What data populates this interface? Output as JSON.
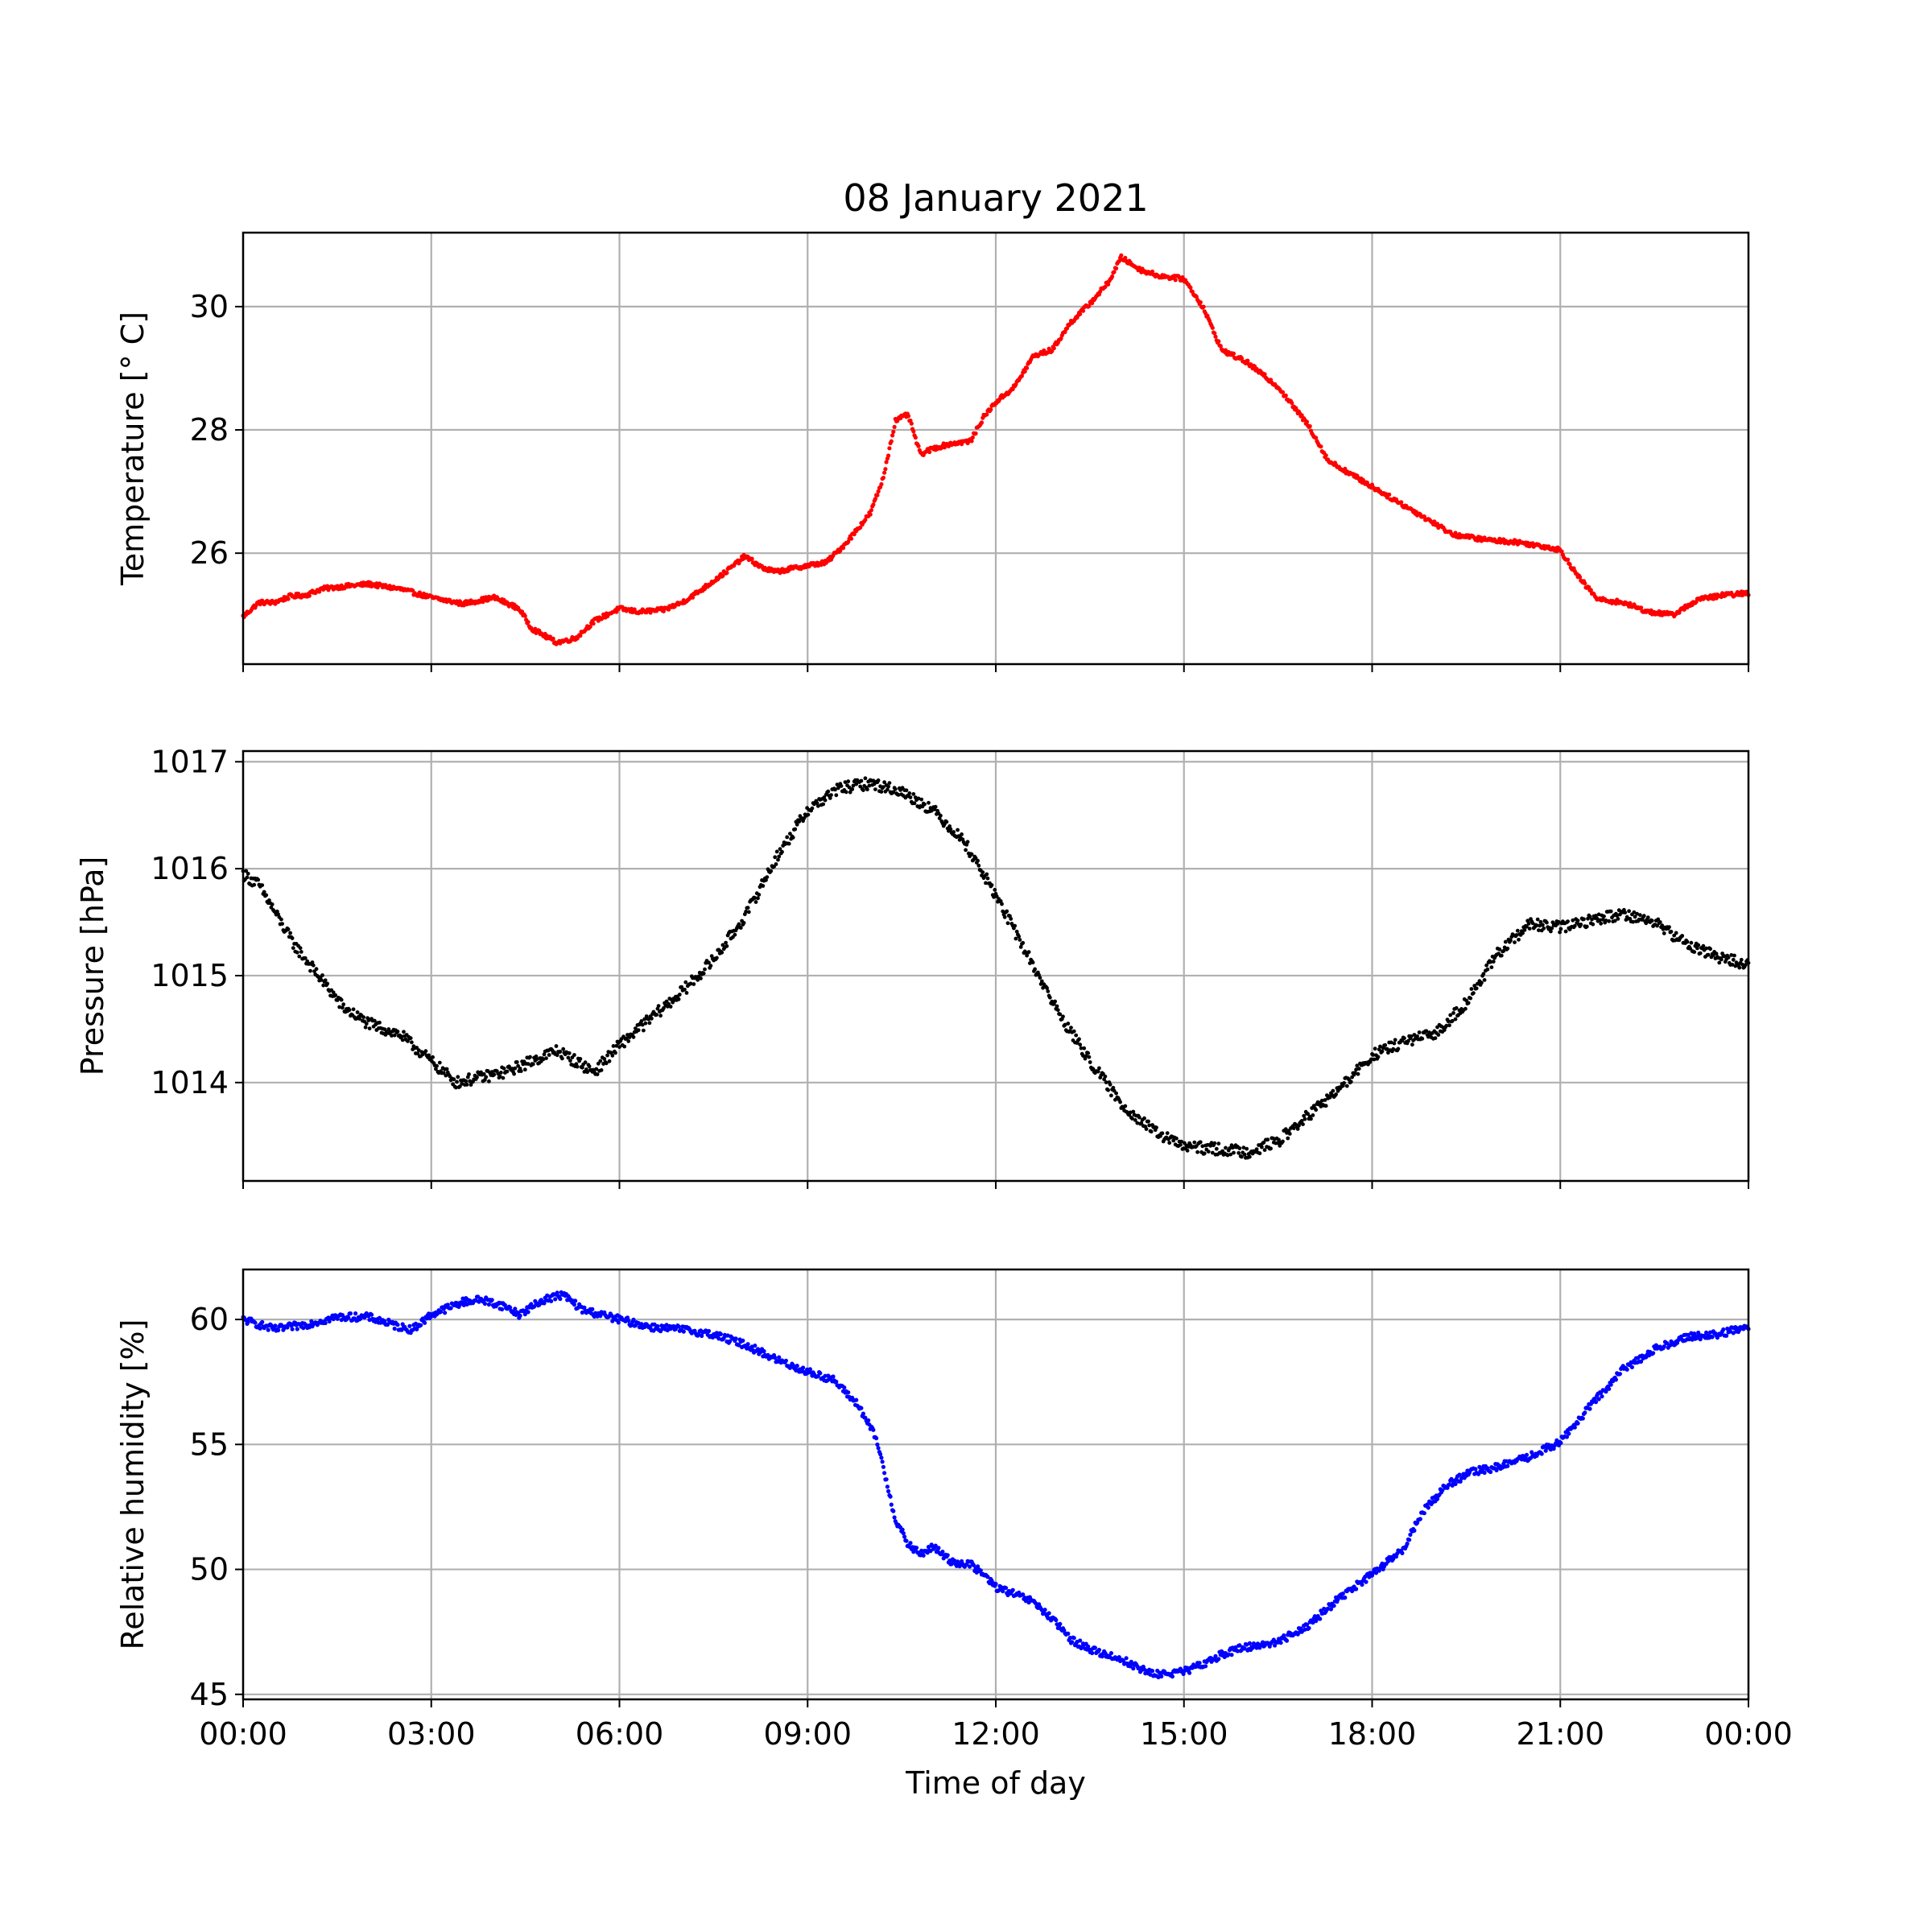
{
  "chart_data": [
    {
      "type": "scatter",
      "title": "08 January 2021",
      "ylabel": "Temperature [° C]",
      "xlabel": "",
      "xlim": [
        0,
        24
      ],
      "ylim": [
        24.2,
        31.2
      ],
      "grid": true,
      "color": "#ff0000",
      "x_ticks": [
        0,
        3,
        6,
        9,
        12,
        15,
        18,
        21,
        24
      ],
      "y_ticks": [
        {
          "value": 26,
          "label": "26"
        },
        {
          "value": 28,
          "label": "28"
        },
        {
          "value": 30,
          "label": "30"
        }
      ],
      "series": [
        {
          "x": [
            0,
            0.25,
            0.5,
            0.75,
            1.0,
            1.25,
            1.5,
            2.0,
            2.5,
            3.0,
            3.5,
            4.0,
            4.4,
            4.6,
            5.0,
            5.3,
            5.6,
            6.0,
            6.3,
            6.7,
            7.0,
            7.3,
            7.7,
            8.0,
            8.3,
            8.5,
            9.0,
            9.3,
            9.6,
            10.0,
            10.2,
            10.4,
            10.6,
            10.8,
            11.0,
            11.3,
            11.6,
            11.8,
            12.0,
            12.3,
            12.6,
            12.9,
            13.2,
            13.5,
            13.8,
            14.0,
            14.3,
            14.6,
            15.0,
            15.3,
            15.6,
            16.0,
            16.5,
            17.0,
            17.3,
            17.8,
            18.3,
            18.8,
            19.3,
            19.8,
            20.3,
            20.8,
            21.0,
            21.3,
            21.6,
            22.0,
            22.4,
            22.8,
            23.2,
            23.6,
            24.0
          ],
          "y": [
            24.97,
            25.2,
            25.2,
            25.3,
            25.32,
            25.42,
            25.45,
            25.5,
            25.42,
            25.28,
            25.18,
            25.28,
            25.1,
            24.78,
            24.55,
            24.62,
            24.9,
            25.1,
            25.05,
            25.08,
            25.2,
            25.4,
            25.7,
            25.95,
            25.75,
            25.7,
            25.8,
            25.85,
            26.15,
            26.65,
            27.2,
            28.15,
            28.25,
            27.6,
            27.7,
            27.78,
            27.82,
            28.2,
            28.45,
            28.7,
            29.2,
            29.3,
            29.75,
            30.05,
            30.4,
            30.8,
            30.6,
            30.5,
            30.45,
            30.0,
            29.3,
            29.1,
            28.7,
            28.05,
            27.5,
            27.2,
            26.9,
            26.6,
            26.3,
            26.22,
            26.18,
            26.1,
            26.05,
            25.6,
            25.25,
            25.2,
            25.05,
            25.0,
            25.25,
            25.32,
            25.35
          ]
        }
      ]
    },
    {
      "type": "scatter",
      "ylabel": "Pressure [hPa]",
      "xlabel": "",
      "xlim": [
        0,
        24
      ],
      "ylim": [
        1013.08,
        1017.1
      ],
      "grid": true,
      "color": "#000000",
      "x_ticks": [
        0,
        3,
        6,
        9,
        12,
        15,
        18,
        21,
        24
      ],
      "y_ticks": [
        {
          "value": 1014,
          "label": "1014"
        },
        {
          "value": 1015,
          "label": "1015"
        },
        {
          "value": 1016,
          "label": "1016"
        },
        {
          "value": 1017,
          "label": "1017"
        }
      ],
      "series": [
        {
          "x": [
            0,
            0.25,
            0.5,
            0.8,
            1.2,
            1.6,
            2.0,
            2.5,
            3.0,
            3.4,
            3.8,
            4.2,
            4.6,
            5.0,
            5.3,
            5.6,
            6.0,
            6.5,
            7.0,
            7.5,
            8.0,
            8.5,
            9.0,
            9.5,
            10.0,
            10.5,
            11.0,
            11.5,
            12.0,
            12.5,
            13.0,
            13.5,
            14.0,
            14.5,
            15.0,
            15.5,
            16.0,
            16.5,
            17.0,
            17.5,
            18.0,
            18.5,
            19.0,
            19.5,
            20.0,
            20.5,
            21.0,
            21.5,
            22.0,
            22.5,
            23.0,
            23.5,
            24.0
          ],
          "y": [
            1015.95,
            1015.85,
            1015.6,
            1015.3,
            1015.0,
            1014.7,
            1014.55,
            1014.45,
            1014.2,
            1014.0,
            1014.05,
            1014.1,
            1014.2,
            1014.3,
            1014.2,
            1014.1,
            1014.35,
            1014.6,
            1014.85,
            1015.15,
            1015.55,
            1016.1,
            1016.55,
            1016.75,
            1016.8,
            1016.72,
            1016.55,
            1016.25,
            1015.75,
            1015.2,
            1014.65,
            1014.2,
            1013.8,
            1013.55,
            1013.4,
            1013.38,
            1013.35,
            1013.45,
            1013.7,
            1013.95,
            1014.25,
            1014.38,
            1014.45,
            1014.75,
            1015.2,
            1015.48,
            1015.45,
            1015.52,
            1015.58,
            1015.5,
            1015.3,
            1015.18,
            1015.1
          ]
        }
      ]
    },
    {
      "type": "scatter",
      "ylabel": "Relative humidity [%]",
      "xlabel": "Time of day",
      "xlim": [
        0,
        24
      ],
      "ylim": [
        44.8,
        62.0
      ],
      "grid": true,
      "color": "#0000ff",
      "x_ticks": [
        0,
        3,
        6,
        9,
        12,
        15,
        18,
        21,
        24
      ],
      "x_tick_labels": [
        "00:00",
        "03:00",
        "06:00",
        "09:00",
        "12:00",
        "15:00",
        "18:00",
        "21:00",
        "00:00"
      ],
      "y_ticks": [
        {
          "value": 45,
          "label": "45"
        },
        {
          "value": 50,
          "label": "50"
        },
        {
          "value": 55,
          "label": "55"
        },
        {
          "value": 60,
          "label": "60"
        }
      ],
      "series": [
        {
          "x": [
            0,
            0.5,
            1.0,
            1.5,
            2.0,
            2.5,
            2.7,
            3.0,
            3.5,
            3.8,
            4.2,
            4.4,
            4.8,
            5.1,
            5.4,
            6.0,
            6.5,
            7.0,
            7.5,
            8.0,
            8.5,
            9.0,
            9.4,
            9.8,
            10.1,
            10.4,
            10.6,
            10.8,
            11.0,
            11.3,
            11.6,
            11.8,
            12.0,
            12.3,
            12.6,
            12.9,
            13.2,
            13.5,
            14.0,
            14.5,
            15.0,
            15.3,
            15.6,
            16.0,
            16.5,
            17.0,
            17.5,
            18.0,
            18.5,
            18.8,
            19.2,
            19.6,
            20.0,
            20.5,
            21.0,
            21.5,
            22.0,
            22.5,
            23.0,
            23.5,
            24.0
          ],
          "y": [
            60.0,
            59.6,
            59.8,
            60.1,
            60.1,
            59.7,
            59.6,
            60.2,
            60.7,
            60.8,
            60.5,
            60.2,
            60.8,
            61.0,
            60.4,
            60.0,
            59.7,
            59.6,
            59.4,
            59.0,
            58.4,
            57.9,
            57.6,
            56.6,
            55.2,
            52.0,
            51.0,
            50.6,
            50.9,
            50.3,
            50.2,
            49.8,
            49.3,
            49.0,
            48.7,
            48.0,
            47.2,
            46.8,
            46.4,
            45.8,
            45.9,
            46.2,
            46.6,
            46.9,
            47.1,
            47.8,
            48.9,
            49.8,
            50.8,
            52.3,
            53.4,
            53.9,
            54.1,
            54.5,
            55.1,
            56.6,
            58.0,
            58.8,
            59.3,
            59.4,
            59.7
          ]
        }
      ]
    }
  ]
}
